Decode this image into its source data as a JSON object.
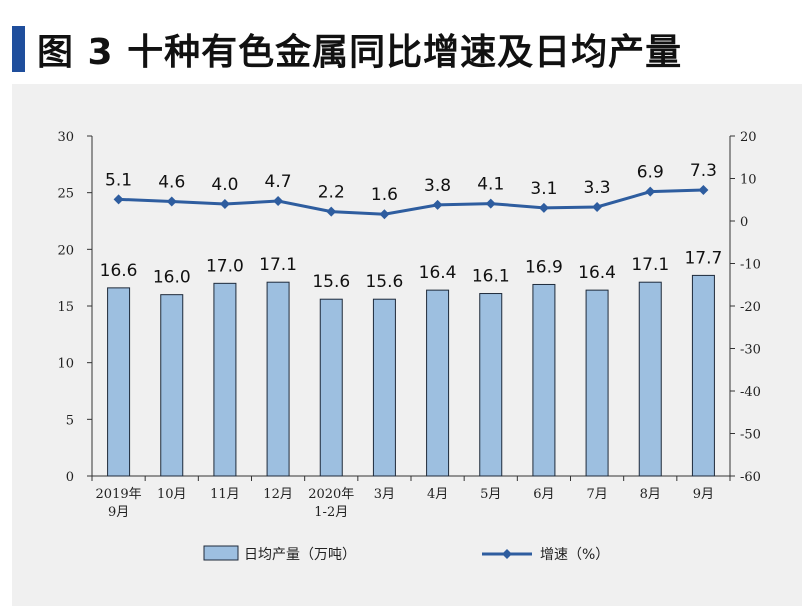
{
  "title": "图 3  十种有色金属同比增速及日均产量",
  "colors": {
    "accent": "#1f4e9c",
    "bar_fill": "#9dbfe0",
    "bar_stroke": "#1e2a3a",
    "line": "#2e5d9f"
  },
  "chart_data": {
    "type": "bar",
    "categories": [
      "2019年9月",
      "10月",
      "11月",
      "12月",
      "2020年1-2月",
      "3月",
      "4月",
      "5月",
      "6月",
      "7月",
      "8月",
      "9月"
    ],
    "category_lines": [
      [
        "2019年",
        "9月"
      ],
      [
        "10月"
      ],
      [
        "11月"
      ],
      [
        "12月"
      ],
      [
        "2020年",
        "1-2月"
      ],
      [
        "3月"
      ],
      [
        "4月"
      ],
      [
        "5月"
      ],
      [
        "6月"
      ],
      [
        "7月"
      ],
      [
        "8月"
      ],
      [
        "9月"
      ]
    ],
    "series": [
      {
        "name": "日均产量（万吨）",
        "type": "bar",
        "axis": "left",
        "values": [
          16.6,
          16.0,
          17.0,
          17.1,
          15.6,
          15.6,
          16.4,
          16.1,
          16.9,
          16.4,
          17.1,
          17.7
        ],
        "labels": [
          "16.6",
          "16.0",
          "17.0",
          "17.1",
          "15.6",
          "15.6",
          "16.4",
          "16.1",
          "16.9",
          "16.4",
          "17.1",
          "17.7"
        ]
      },
      {
        "name": "增速（%）",
        "type": "line",
        "axis": "right",
        "values": [
          5.1,
          4.6,
          4.0,
          4.7,
          2.2,
          1.6,
          3.8,
          4.1,
          3.1,
          3.3,
          6.9,
          7.3
        ],
        "labels": [
          "5.1",
          "4.6",
          "4.0",
          "4.7",
          "2.2",
          "1.6",
          "3.8",
          "4.1",
          "3.1",
          "3.3",
          "6.9",
          "7.3"
        ]
      }
    ],
    "y_left": {
      "lim": [
        0,
        30
      ],
      "ticks": [
        "0",
        "5",
        "10",
        "15",
        "20",
        "25",
        "30"
      ]
    },
    "y_right": {
      "lim": [
        -60,
        20
      ],
      "ticks": [
        "-60",
        "-50",
        "-40",
        "-30",
        "-20",
        "-10",
        "0",
        "10",
        "20"
      ]
    },
    "grid": false,
    "legend": "bottom"
  }
}
